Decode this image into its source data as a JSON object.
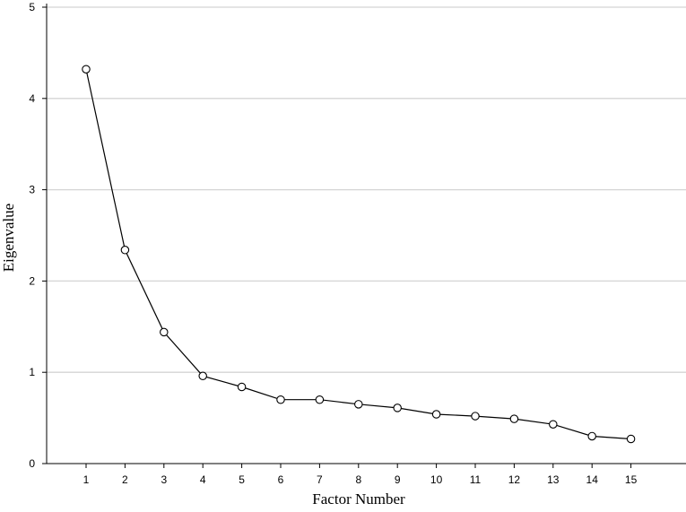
{
  "chart_data": {
    "type": "line",
    "title": "",
    "xlabel": "Factor Number",
    "ylabel": "Eigenvalue",
    "x": [
      1,
      2,
      3,
      4,
      5,
      6,
      7,
      8,
      9,
      10,
      11,
      12,
      13,
      14,
      15
    ],
    "x_tick_labels": [
      "1",
      "2",
      "3",
      "4",
      "5",
      "6",
      "7",
      "8",
      "9",
      "10",
      "11",
      "12",
      "13",
      "14",
      "15"
    ],
    "y_ticks": [
      0,
      1,
      2,
      3,
      4,
      5
    ],
    "y_tick_labels": [
      "0",
      "1",
      "2",
      "3",
      "4",
      "5"
    ],
    "ylim": [
      0,
      5
    ],
    "xlim": [
      0.5,
      15.5
    ],
    "grid": "horizontal",
    "legend": "none",
    "series": [
      {
        "values": [
          4.32,
          2.34,
          1.44,
          0.96,
          0.84,
          0.7,
          0.7,
          0.65,
          0.61,
          0.54,
          0.52,
          0.49,
          0.43,
          0.3,
          0.27
        ]
      }
    ]
  }
}
